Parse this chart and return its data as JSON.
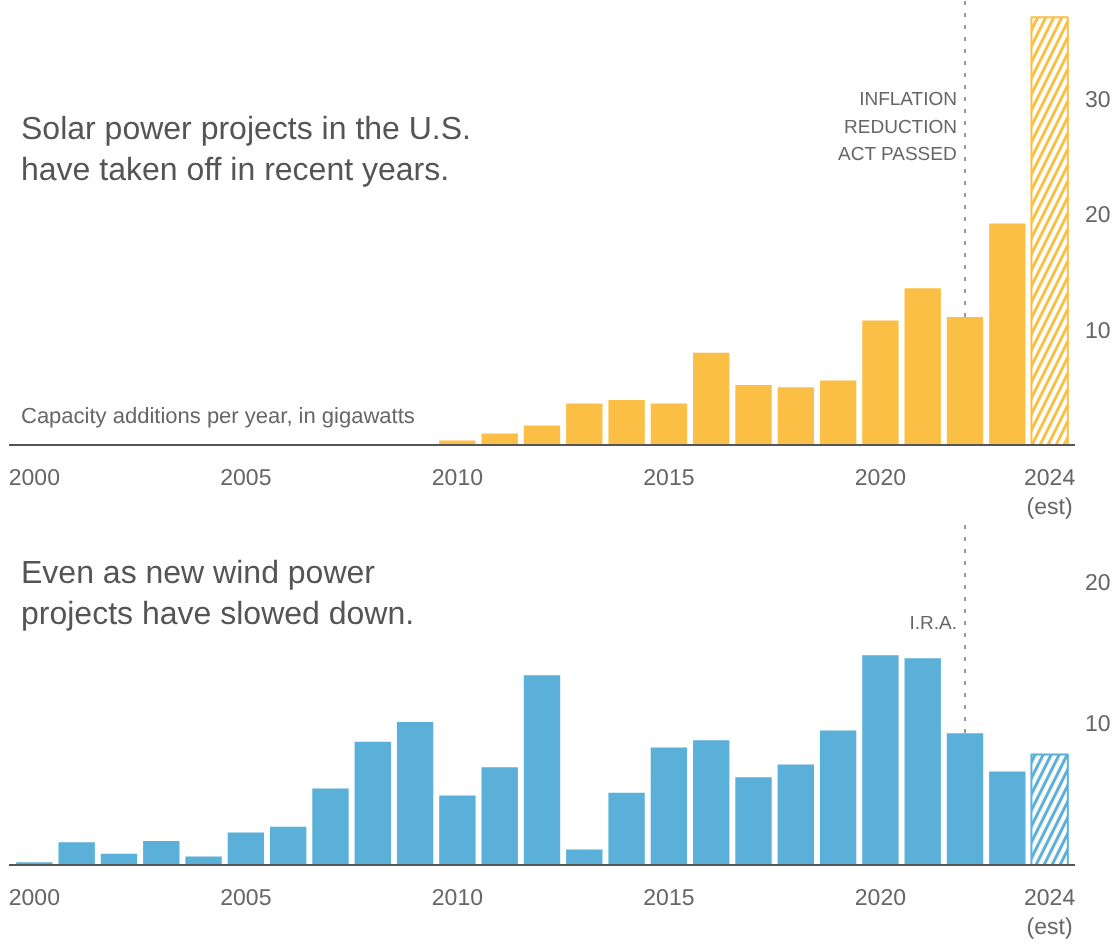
{
  "chart_data": [
    {
      "type": "bar",
      "title": "Solar power projects in the U.S.\nhave taken off in recent years.",
      "ylabel": "Capacity additions per year, in gigawatts",
      "series": [
        {
          "color": "#fbbf45",
          "x": [
            2000,
            2001,
            2002,
            2003,
            2004,
            2005,
            2006,
            2007,
            2008,
            2009,
            2010,
            2011,
            2012,
            2013,
            2014,
            2015,
            2016,
            2017,
            2018,
            2019,
            2020,
            2021,
            2022,
            2023
          ],
          "values": [
            0,
            0,
            0,
            0,
            0,
            0,
            0,
            0,
            0,
            0,
            0.4,
            1.0,
            1.7,
            3.6,
            3.9,
            3.6,
            8.0,
            5.2,
            5.0,
            5.6,
            10.8,
            13.6,
            11.1,
            19.2
          ]
        },
        {
          "color": "#fbbf45",
          "x": [
            2024
          ],
          "values": [
            37.1
          ]
        }
      ],
      "xlim": [
        1999.4,
        2024.6
      ],
      "xticks": [
        2000,
        2005,
        2010,
        2015,
        2020,
        {
          "value": 2024,
          "label": "2024\n(est)"
        }
      ],
      "ylim": [
        0,
        38.5
      ],
      "yticks": [
        10,
        20,
        30
      ],
      "ref_lines": [
        {
          "axis": "x",
          "value": 2022,
          "label": "INFLATION\nREDUCTION\nACT PASSED",
          "line_style": "dotted",
          "color": "#999999"
        }
      ],
      "grid": false
    },
    {
      "type": "bar",
      "title": "Even as new wind power\nprojects have slowed down.",
      "series": [
        {
          "color": "#5ab0d8",
          "x": [
            2000,
            2001,
            2002,
            2003,
            2004,
            2005,
            2006,
            2007,
            2008,
            2009,
            2010,
            2011,
            2012,
            2013,
            2014,
            2015,
            2016,
            2017,
            2018,
            2019,
            2020,
            2021,
            2022,
            2023
          ],
          "values": [
            0.2,
            1.6,
            0.8,
            1.7,
            0.6,
            2.3,
            2.7,
            5.4,
            8.7,
            10.1,
            4.9,
            6.9,
            13.4,
            1.1,
            5.1,
            8.3,
            8.8,
            6.2,
            7.1,
            9.5,
            14.8,
            14.6,
            9.3,
            6.6
          ]
        },
        {
          "color": "#5ab0d8",
          "x": [
            2024
          ],
          "values": [
            7.8
          ]
        }
      ],
      "xlim": [
        1999.4,
        2024.6
      ],
      "xticks": [
        2000,
        2005,
        2010,
        2015,
        2020,
        {
          "value": 2024,
          "label": "2024\n(est)"
        }
      ],
      "ylim": [
        0,
        24
      ],
      "yticks": [
        10,
        20
      ],
      "ref_lines": [
        {
          "axis": "x",
          "value": 2022,
          "label": "I.R.A.",
          "line_style": "dotted",
          "color": "#999999"
        }
      ],
      "grid": false
    }
  ]
}
